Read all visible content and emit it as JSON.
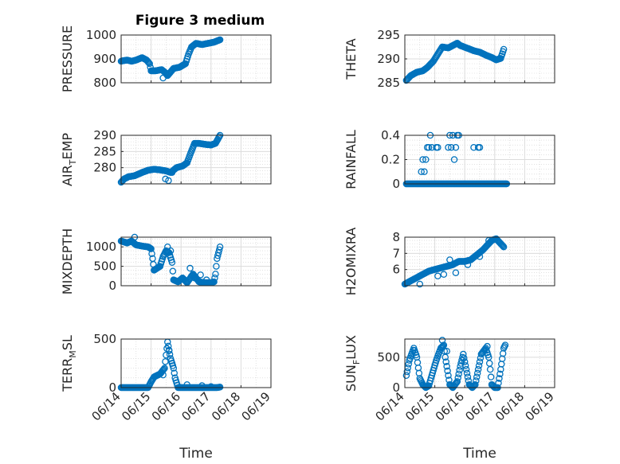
{
  "figure": {
    "title": "Figure 3 medium"
  },
  "colors": {
    "marker": "#0072BD",
    "axis": "#262626",
    "grid": "#cfcfcf",
    "background": "#ffffff"
  },
  "chart_data": [
    {
      "type": "scatter",
      "id": "pressure",
      "title": "Figure 3 medium",
      "ylabel": "PRESSURE",
      "ylim": [
        800,
        1000
      ],
      "yticks": [
        "800",
        "900",
        "1000"
      ],
      "xlim": [
        0,
        5
      ],
      "xticks": [],
      "xlabel": "",
      "grid": true,
      "anchors": [
        [
          0,
          890
        ],
        [
          0.05,
          892
        ],
        [
          0.2,
          895
        ],
        [
          0.35,
          890
        ],
        [
          0.5,
          895
        ],
        [
          0.7,
          905
        ],
        [
          0.85,
          895
        ],
        [
          0.95,
          880
        ],
        [
          1.0,
          850
        ],
        [
          1.15,
          850
        ],
        [
          1.35,
          855
        ],
        [
          1.45,
          845
        ],
        [
          1.55,
          830
        ],
        [
          1.65,
          845
        ],
        [
          1.75,
          860
        ],
        [
          1.95,
          865
        ],
        [
          2.15,
          880
        ],
        [
          2.25,
          920
        ],
        [
          2.35,
          950
        ],
        [
          2.5,
          965
        ],
        [
          2.7,
          960
        ],
        [
          2.9,
          965
        ],
        [
          3.1,
          970
        ],
        [
          3.3,
          980
        ]
      ],
      "extra_points": [
        [
          1.4,
          820
        ],
        [
          1.5,
          840
        ]
      ]
    },
    {
      "type": "scatter",
      "id": "theta",
      "ylabel": "THETA",
      "ylim": [
        285,
        295
      ],
      "yticks": [
        "285",
        "290",
        "295"
      ],
      "xlim": [
        0,
        5
      ],
      "xticks": [],
      "xlabel": "",
      "grid": true,
      "anchors": [
        [
          0.05,
          285.5
        ],
        [
          0.2,
          286.5
        ],
        [
          0.4,
          287.2
        ],
        [
          0.6,
          287.5
        ],
        [
          0.75,
          288.2
        ],
        [
          0.95,
          289.5
        ],
        [
          1.1,
          291.0
        ],
        [
          1.25,
          292.5
        ],
        [
          1.45,
          292.3
        ],
        [
          1.6,
          292.8
        ],
        [
          1.75,
          293.3
        ],
        [
          1.85,
          292.8
        ],
        [
          2.1,
          292.2
        ],
        [
          2.3,
          291.7
        ],
        [
          2.5,
          291.4
        ],
        [
          2.7,
          290.8
        ],
        [
          2.9,
          290.3
        ],
        [
          3.05,
          289.8
        ],
        [
          3.2,
          290.1
        ],
        [
          3.3,
          292.0
        ]
      ]
    },
    {
      "type": "scatter",
      "id": "air_temp",
      "ylabel": "AIR_TEMP",
      "ylabel_main": "AIR",
      "ylabel_sub": "T",
      "ylabel_rest": "EMP",
      "ylim": [
        275,
        290
      ],
      "yticks": [
        "280",
        "285",
        "290"
      ],
      "xlim": [
        0,
        5
      ],
      "xticks": [],
      "xlabel": "",
      "grid": true,
      "anchors": [
        [
          0,
          275.5
        ],
        [
          0.1,
          276.5
        ],
        [
          0.25,
          277.2
        ],
        [
          0.45,
          277.5
        ],
        [
          0.7,
          278.5
        ],
        [
          0.9,
          279.2
        ],
        [
          1.1,
          279.5
        ],
        [
          1.3,
          279.3
        ],
        [
          1.5,
          279.0
        ],
        [
          1.65,
          278.5
        ],
        [
          1.85,
          280.0
        ],
        [
          2.05,
          280.5
        ],
        [
          2.2,
          281.5
        ],
        [
          2.3,
          284.0
        ],
        [
          2.45,
          287.5
        ],
        [
          2.6,
          287.5
        ],
        [
          2.8,
          287.2
        ],
        [
          3.0,
          287.0
        ],
        [
          3.15,
          287.5
        ],
        [
          3.3,
          290.0
        ]
      ],
      "extra_points": [
        [
          1.48,
          276.5
        ],
        [
          1.58,
          276.0
        ],
        [
          1.7,
          278.5
        ]
      ]
    },
    {
      "type": "scatter",
      "id": "rainfall",
      "ylabel": "RAINFALL",
      "ylim": [
        0,
        0.4
      ],
      "yticks": [
        "0",
        "0.2",
        "0.4"
      ],
      "xlim": [
        0,
        5
      ],
      "xticks": [],
      "xlabel": "",
      "grid": true,
      "points": [
        [
          0.55,
          0.1
        ],
        [
          0.6,
          0.2
        ],
        [
          0.65,
          0.1
        ],
        [
          0.7,
          0.2
        ],
        [
          0.75,
          0.3
        ],
        [
          0.8,
          0.3
        ],
        [
          0.85,
          0.4
        ],
        [
          0.9,
          0.3
        ],
        [
          1.05,
          0.3
        ],
        [
          1.1,
          0.3
        ],
        [
          1.45,
          0.3
        ],
        [
          1.5,
          0.4
        ],
        [
          1.55,
          0.3
        ],
        [
          1.6,
          0.4
        ],
        [
          1.65,
          0.2
        ],
        [
          1.7,
          0.3
        ],
        [
          1.75,
          0.4
        ],
        [
          1.8,
          0.4
        ],
        [
          2.3,
          0.3
        ],
        [
          2.45,
          0.3
        ],
        [
          2.5,
          0.3
        ]
      ],
      "zero_ranges": [
        [
          0.05,
          3.4
        ]
      ]
    },
    {
      "type": "scatter",
      "id": "mixdepth",
      "ylabel": "MIXDEPTH",
      "ylim": [
        0,
        1250
      ],
      "yticks": [
        "0",
        "500",
        "1000"
      ],
      "xlim": [
        0,
        5
      ],
      "xticks": [],
      "xlabel": "",
      "grid": true,
      "anchors": [
        [
          0,
          1150
        ],
        [
          0.2,
          1100
        ],
        [
          0.35,
          1150
        ],
        [
          0.5,
          1050
        ],
        [
          0.7,
          1020
        ],
        [
          0.9,
          1000
        ],
        [
          1.0,
          950
        ],
        [
          1.05,
          700
        ],
        [
          1.1,
          400
        ],
        [
          1.2,
          450
        ],
        [
          1.3,
          500
        ],
        [
          1.4,
          750
        ],
        [
          1.5,
          900
        ],
        [
          1.6,
          850
        ],
        [
          1.7,
          600
        ],
        [
          1.75,
          150
        ],
        [
          1.9,
          100
        ],
        [
          2.05,
          200
        ],
        [
          2.2,
          80
        ],
        [
          2.4,
          300
        ],
        [
          2.6,
          100
        ],
        [
          2.8,
          80
        ],
        [
          3.0,
          80
        ],
        [
          3.1,
          100
        ],
        [
          3.15,
          300
        ],
        [
          3.2,
          700
        ],
        [
          3.3,
          1000
        ]
      ],
      "extra_points": [
        [
          0.45,
          1250
        ],
        [
          1.55,
          1000
        ],
        [
          1.65,
          900
        ],
        [
          2.3,
          450
        ],
        [
          2.45,
          200
        ],
        [
          2.65,
          280
        ],
        [
          2.85,
          150
        ]
      ]
    },
    {
      "type": "scatter",
      "id": "h2omixra",
      "ylabel": "H2OMIXRA",
      "ylim": [
        5,
        8
      ],
      "yticks": [
        "6",
        "7",
        "8"
      ],
      "xlim": [
        0,
        5
      ],
      "xticks": [],
      "xlabel": "",
      "grid": true,
      "anchors": [
        [
          0,
          5.1
        ],
        [
          0.2,
          5.3
        ],
        [
          0.4,
          5.5
        ],
        [
          0.6,
          5.7
        ],
        [
          0.8,
          5.9
        ],
        [
          1.0,
          6.0
        ],
        [
          1.2,
          6.1
        ],
        [
          1.4,
          6.2
        ],
        [
          1.6,
          6.3
        ],
        [
          1.8,
          6.5
        ],
        [
          2.0,
          6.5
        ],
        [
          2.2,
          6.6
        ],
        [
          2.4,
          6.9
        ],
        [
          2.6,
          7.2
        ],
        [
          2.75,
          7.5
        ],
        [
          2.9,
          7.8
        ],
        [
          3.05,
          7.9
        ],
        [
          3.2,
          7.6
        ],
        [
          3.3,
          7.4
        ]
      ],
      "extra_points": [
        [
          0.5,
          5.1
        ],
        [
          1.1,
          5.6
        ],
        [
          1.3,
          5.7
        ],
        [
          1.5,
          6.6
        ],
        [
          1.7,
          5.8
        ],
        [
          2.1,
          6.3
        ],
        [
          2.5,
          6.8
        ],
        [
          2.8,
          7.8
        ]
      ]
    },
    {
      "type": "scatter",
      "id": "terr_msl",
      "ylabel": "TERR_MSL",
      "ylabel_main": "TERR",
      "ylabel_sub": "M",
      "ylabel_rest": "SL",
      "ylim": [
        0,
        500
      ],
      "yticks": [
        "0",
        "500"
      ],
      "xlim": [
        0,
        5
      ],
      "xticks": [
        "06/14",
        "06/15",
        "06/16",
        "06/17",
        "06/18",
        "06/19"
      ],
      "xlabel": "Time",
      "grid": true,
      "anchors": [
        [
          0,
          0
        ],
        [
          0.9,
          0
        ],
        [
          1.0,
          60
        ],
        [
          1.1,
          110
        ],
        [
          1.3,
          140
        ],
        [
          1.45,
          200
        ],
        [
          1.55,
          470
        ],
        [
          1.65,
          300
        ],
        [
          1.75,
          200
        ],
        [
          1.8,
          100
        ],
        [
          1.9,
          0
        ],
        [
          3.2,
          0
        ],
        [
          3.3,
          5
        ]
      ],
      "extra_points": [
        [
          1.6,
          380
        ],
        [
          1.7,
          250
        ],
        [
          1.4,
          130
        ],
        [
          2.2,
          30
        ],
        [
          2.7,
          20
        ],
        [
          3.0,
          10
        ]
      ]
    },
    {
      "type": "scatter",
      "id": "sun_flux",
      "ylabel": "SUN_FLUX",
      "ylabel_main": "SUN",
      "ylabel_sub": "F",
      "ylabel_rest": "LUX",
      "ylim": [
        0,
        800
      ],
      "yticks": [
        "0",
        "500"
      ],
      "xlim": [
        0,
        5
      ],
      "xticks": [
        "06/14",
        "06/15",
        "06/16",
        "06/17",
        "06/18",
        "06/19"
      ],
      "xlabel": "Time",
      "grid": true,
      "anchors": [
        [
          0.05,
          200
        ],
        [
          0.15,
          450
        ],
        [
          0.3,
          650
        ],
        [
          0.4,
          500
        ],
        [
          0.5,
          150
        ],
        [
          0.6,
          50
        ],
        [
          0.7,
          0
        ],
        [
          0.8,
          30
        ],
        [
          0.9,
          200
        ],
        [
          1.05,
          450
        ],
        [
          1.2,
          650
        ],
        [
          1.3,
          700
        ],
        [
          1.35,
          500
        ],
        [
          1.5,
          50
        ],
        [
          1.6,
          0
        ],
        [
          1.75,
          100
        ],
        [
          1.85,
          350
        ],
        [
          1.95,
          550
        ],
        [
          2.05,
          300
        ],
        [
          2.15,
          50
        ],
        [
          2.25,
          0
        ],
        [
          2.35,
          50
        ],
        [
          2.45,
          300
        ],
        [
          2.55,
          550
        ],
        [
          2.7,
          650
        ],
        [
          2.8,
          500
        ],
        [
          2.85,
          300
        ],
        [
          2.9,
          50
        ],
        [
          3.0,
          0
        ],
        [
          3.1,
          0
        ],
        [
          3.2,
          300
        ],
        [
          3.3,
          650
        ],
        [
          3.35,
          700
        ]
      ],
      "extra_points": [
        [
          1.25,
          780
        ],
        [
          2.75,
          680
        ],
        [
          1.4,
          600
        ]
      ]
    }
  ]
}
